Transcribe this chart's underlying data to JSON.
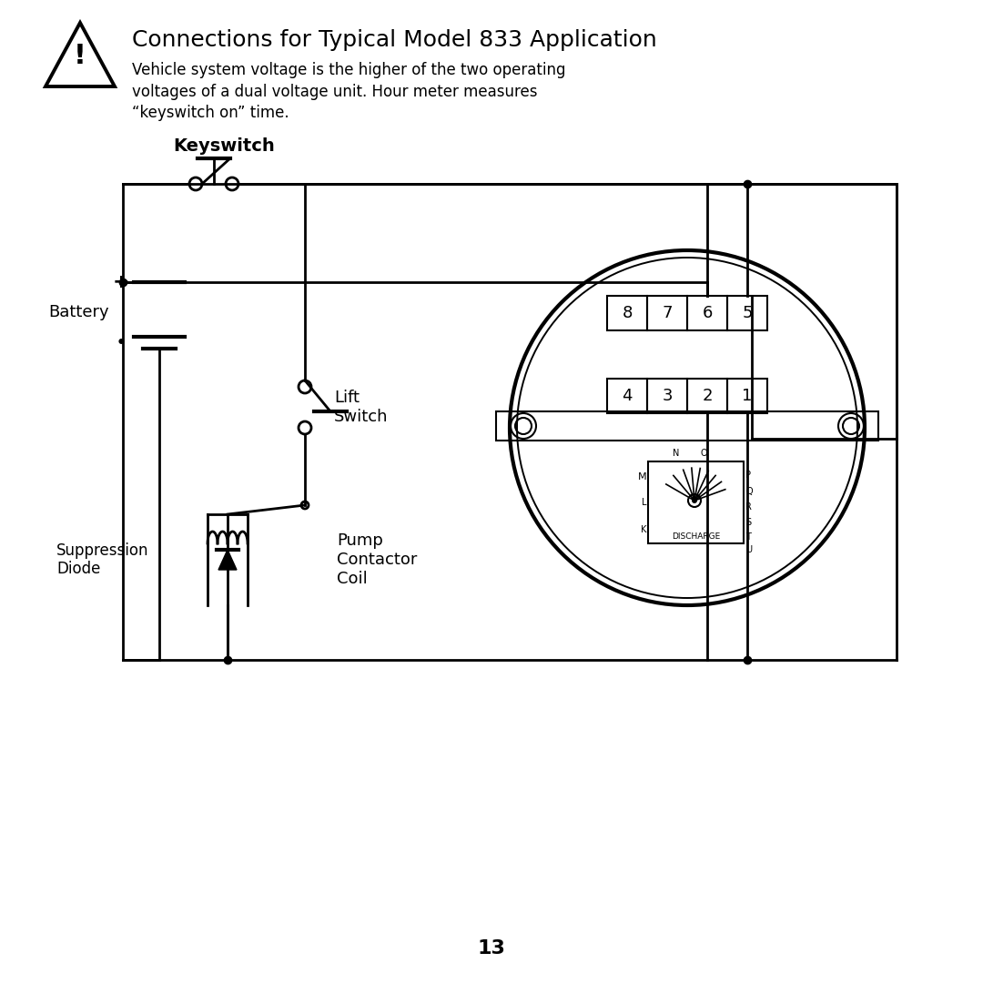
{
  "title": "Connections for Typical Model 833 Application",
  "subtitle": "Vehicle system voltage is the higher of the two operating\nvoltages of a dual voltage unit. Hour meter measures\n“keyswitch on” time.",
  "page_number": "13",
  "bg_color": "#ffffff",
  "fg_color": "#000000",
  "keyswitch_label": "Keyswitch",
  "lift_switch_label": "Lift\nSwitch",
  "battery_label": "Battery",
  "suppression_diode_label": "Suppression\nDiode",
  "pump_contactor_label": "Pump\nContactor\nCoil",
  "discharge_label": "DISCHARGE",
  "terminal_top_row": [
    "8",
    "7",
    "6",
    "5"
  ],
  "terminal_bot_row": [
    "4",
    "3",
    "2",
    "1"
  ]
}
